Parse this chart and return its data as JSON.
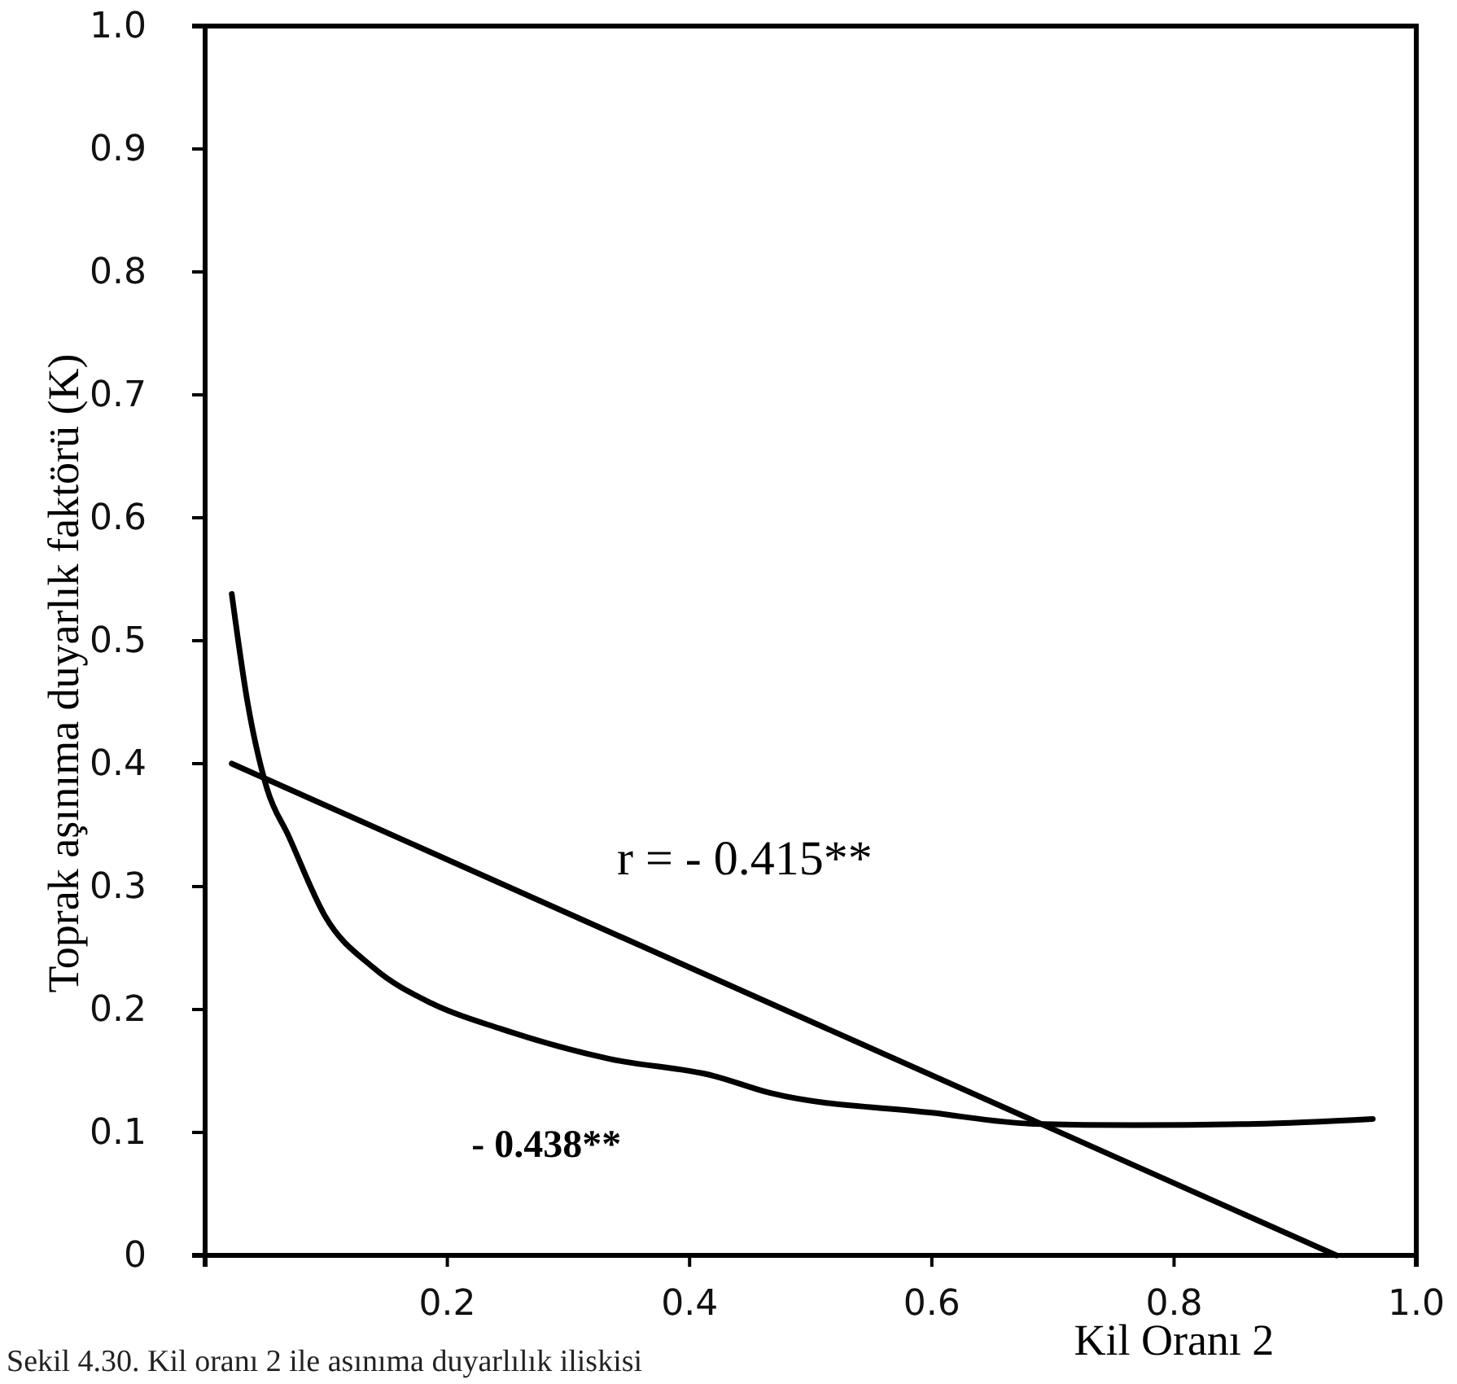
{
  "chart_data": {
    "type": "line",
    "xlabel": "Kil Oranı 2",
    "ylabel": "Toprak aşınıma duyarlık faktörü (K)",
    "xlim": [
      0,
      1
    ],
    "xticks": [
      0.2,
      0.4,
      0.6,
      0.8,
      {
        "value": 1,
        "label": "1.0"
      }
    ],
    "ylim": [
      0,
      1
    ],
    "yticks": [
      0,
      0.1,
      0.2,
      0.3,
      0.4,
      0.5,
      0.6,
      0.7,
      0.8,
      0.9,
      {
        "value": 1,
        "label": "1.0"
      }
    ],
    "grid": false,
    "marker": "none",
    "line_style": "solid",
    "series": [
      {
        "color": "#000000",
        "x": [
          0.022,
          0.934
        ],
        "values": [
          0.4,
          0
        ]
      },
      {
        "color": "#000000",
        "x": [
          0.022,
          0.035,
          0.051,
          0.069,
          0.099,
          0.139,
          0.187,
          0.245,
          0.333,
          0.42,
          0.467,
          0.6,
          0.684,
          0.767,
          0.867,
          0.964
        ],
        "values": [
          0.538,
          0.45,
          0.38,
          0.341,
          0.276,
          0.234,
          0.205,
          0.184,
          0.16,
          0.146,
          0.132,
          0.116,
          0.107,
          0.106,
          0.107,
          0.111
        ]
      }
    ],
    "annotations": [
      "r = - 0.415**",
      "- 0.438**",
      "Sekil 4.30. Kil oranı 2 ile asınıma duyarlılık iliskisi"
    ]
  }
}
